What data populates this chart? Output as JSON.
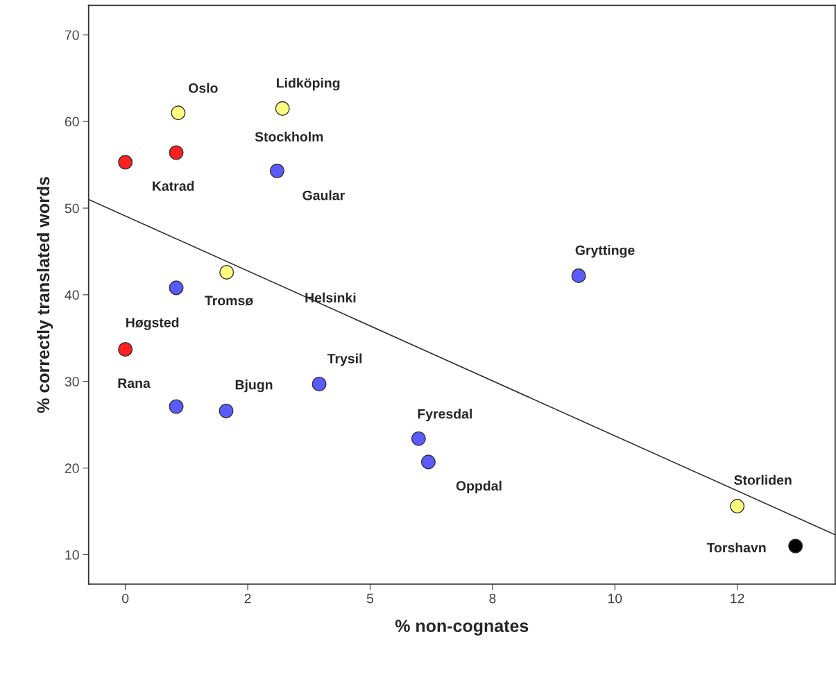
{
  "chart_data": {
    "type": "scatter",
    "xlabel": "% non-cognates",
    "ylabel": "% correctly translated words",
    "xlim": [
      -0.75,
      14.5
    ],
    "ylim": [
      6.6,
      73.4
    ],
    "xticks": [
      0,
      {
        "value": 2.5,
        "label": "2"
      },
      5,
      {
        "value": 7.5,
        "label": "8"
      },
      10,
      {
        "value": 12.5,
        "label": "12"
      }
    ],
    "yticks": [
      10,
      20,
      30,
      40,
      50,
      60,
      70
    ],
    "grid": false,
    "marker": "circle",
    "series": [
      {
        "color": "#ffff80",
        "x": [
          1.08,
          3.21,
          2.07,
          12.5
        ],
        "values": [
          61.0,
          61.5,
          42.6,
          15.6
        ]
      },
      {
        "color": "#ff2020",
        "x": [
          0,
          1.04,
          0
        ],
        "values": [
          55.3,
          56.4,
          33.7
        ]
      },
      {
        "color": "#5a5aff",
        "x": [
          3.1,
          9.26,
          1.04,
          1.04,
          2.06,
          3.96,
          5.99,
          6.19
        ],
        "values": [
          54.3,
          42.2,
          40.8,
          27.1,
          26.6,
          29.7,
          23.4,
          20.7
        ]
      },
      {
        "color": "#000000",
        "x": [
          13.69
        ],
        "values": [
          11.0
        ]
      },
      {
        "type": "line",
        "marker": "none",
        "color": "#333333",
        "x": [
          -0.75,
          14.5
        ],
        "values": [
          51.0,
          12.3
        ]
      }
    ],
    "annotations": [
      {
        "text": "Oslo",
        "x": 1.08,
        "y": 61.0
      },
      {
        "text": "Lidköping",
        "x": 3.21,
        "y": 61.5
      },
      "Stockholm",
      {
        "text": "Katrad",
        "x": 0,
        "y": 55.3
      },
      {
        "text": "Gaular",
        "x": 3.1,
        "y": 54.3
      },
      {
        "text": "Gryttinge",
        "x": 9.26,
        "y": 42.2
      },
      "Helsinki",
      {
        "text": "Tromsø",
        "x": 1.04,
        "y": 40.8
      },
      {
        "text": "Høgsted",
        "x": 0,
        "y": 33.7
      },
      {
        "text": "Rana",
        "x": 1.04,
        "y": 27.1
      },
      {
        "text": "Bjugn",
        "x": 2.06,
        "y": 26.6
      },
      {
        "text": "Trysil",
        "x": 3.96,
        "y": 29.7
      },
      {
        "text": "Fyresdal",
        "x": 5.99,
        "y": 23.4
      },
      {
        "text": "Oppdal",
        "x": 6.19,
        "y": 20.7
      },
      {
        "text": "Storliden",
        "x": 12.5,
        "y": 15.6
      },
      {
        "text": "Torshavn",
        "x": 13.69,
        "y": 11.0
      }
    ]
  }
}
